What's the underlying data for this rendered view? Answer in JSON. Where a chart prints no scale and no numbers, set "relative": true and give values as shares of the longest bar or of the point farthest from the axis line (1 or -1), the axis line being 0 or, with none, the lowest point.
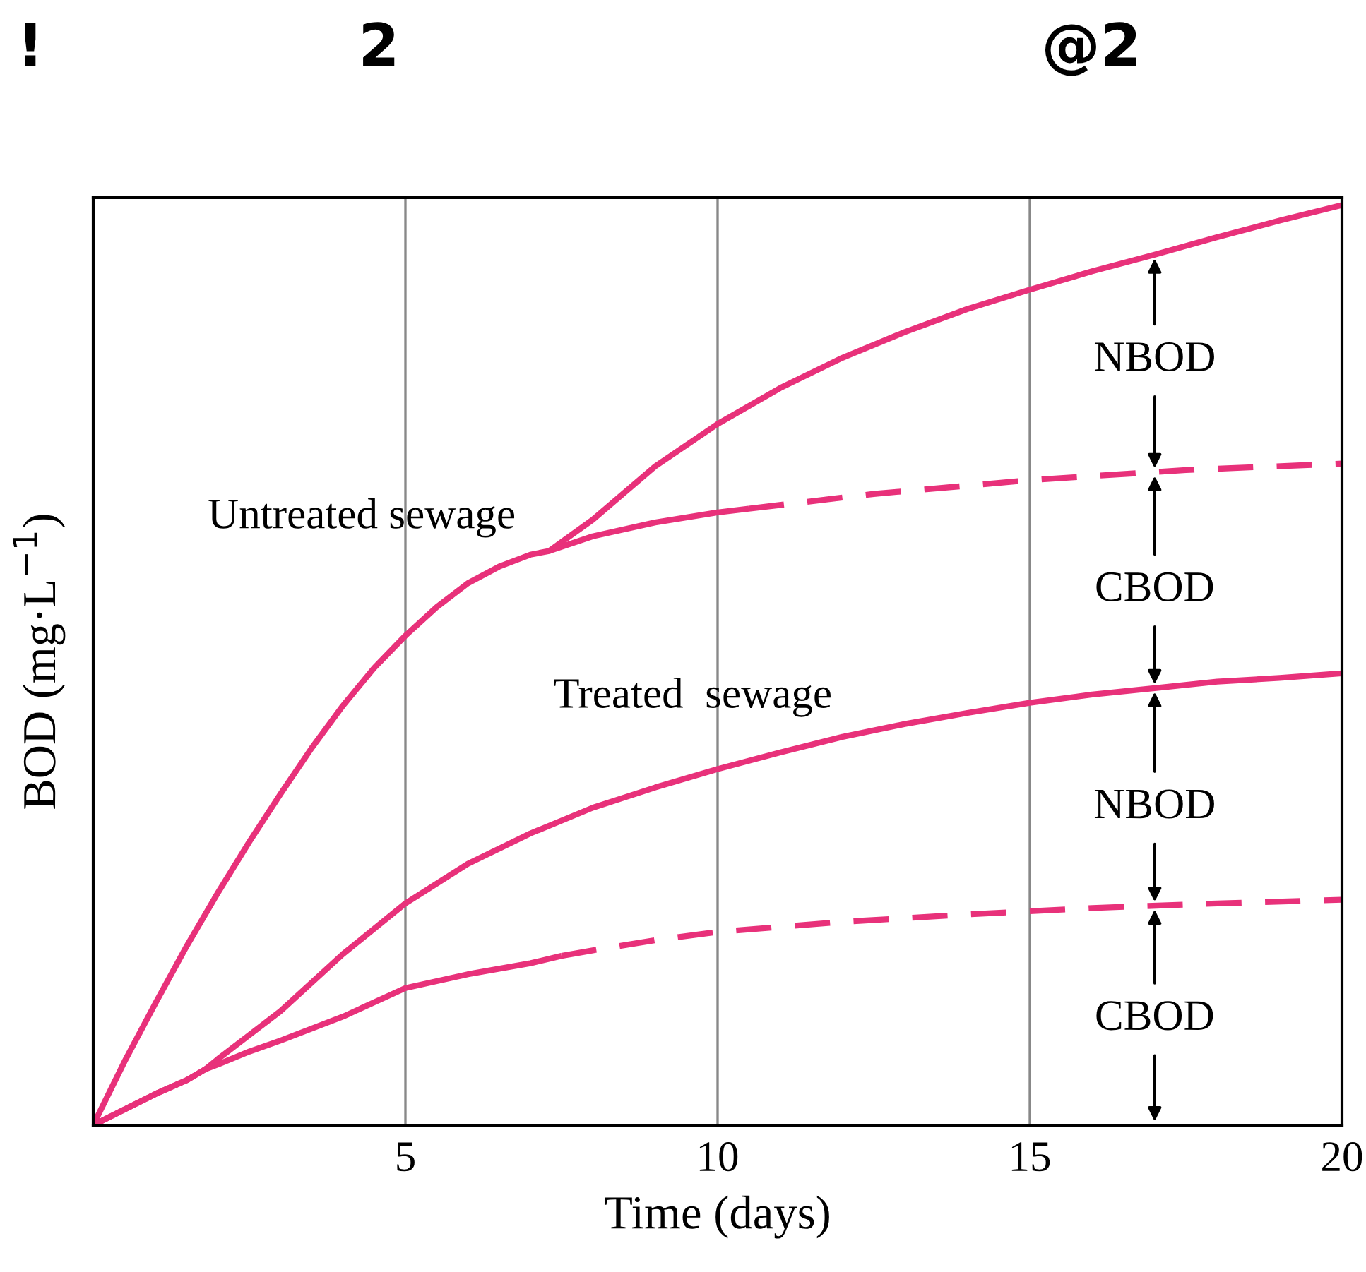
{
  "chart_data": {
    "type": "line",
    "relative": true,
    "xlabel": "Time (days)",
    "ylabel": "BOD (mg·L$^{−1}$)",
    "xlim": [
      0,
      20
    ],
    "xticks": [
      5,
      10,
      15,
      20
    ],
    "grid": "x",
    "legend": false,
    "series": [
      {
        "color": "#e8317a",
        "line_style": "solid",
        "x": [
          0,
          0.5,
          1,
          1.5,
          2,
          2.5,
          3,
          3.5,
          4,
          4.5,
          5,
          5.5,
          6,
          6.5,
          7,
          7.3,
          8,
          9,
          10,
          11,
          12,
          13,
          14,
          15,
          16,
          17,
          18,
          19,
          20
        ],
        "values": [
          0,
          0.069,
          0.133,
          0.195,
          0.253,
          0.308,
          0.36,
          0.41,
          0.456,
          0.497,
          0.532,
          0.563,
          0.589,
          0.607,
          0.62,
          0.624,
          0.658,
          0.716,
          0.762,
          0.801,
          0.834,
          0.862,
          0.887,
          0.908,
          0.928,
          0.946,
          0.965,
          0.983,
          1.0
        ]
      },
      {
        "color": "#e8317a",
        "line_style": "solid",
        "x": [
          7.3,
          8,
          9,
          10,
          10.5
        ],
        "values": [
          0.624,
          0.64,
          0.655,
          0.666,
          0.67
        ]
      },
      {
        "color": "#e8317a",
        "line_style": "dashed",
        "x": [
          10.5,
          12.5,
          15,
          17.5,
          20
        ],
        "values": [
          0.67,
          0.686,
          0.701,
          0.712,
          0.719
        ]
      },
      {
        "color": "#e8317a",
        "line_style": "solid",
        "x": [
          0,
          0.5,
          1,
          1.5,
          1.8,
          2,
          2.5,
          3,
          4,
          5,
          6,
          7,
          8,
          9,
          10,
          11,
          12,
          13,
          14,
          15,
          16,
          17,
          18,
          19,
          20
        ],
        "values": [
          0,
          0.017,
          0.034,
          0.049,
          0.061,
          0.072,
          0.098,
          0.124,
          0.186,
          0.241,
          0.284,
          0.317,
          0.345,
          0.367,
          0.387,
          0.405,
          0.422,
          0.436,
          0.448,
          0.459,
          0.468,
          0.475,
          0.482,
          0.486,
          0.491
        ]
      },
      {
        "color": "#e8317a",
        "line_style": "solid",
        "x": [
          0,
          0.5,
          1,
          1.5,
          1.8,
          2,
          2.5,
          3,
          4,
          5,
          6,
          7,
          7.5
        ],
        "values": [
          0,
          0.017,
          0.034,
          0.049,
          0.061,
          0.066,
          0.08,
          0.092,
          0.118,
          0.149,
          0.164,
          0.176,
          0.184
        ]
      },
      {
        "color": "#e8317a",
        "line_style": "dashed",
        "x": [
          7.5,
          8,
          9,
          10,
          12,
          14,
          16,
          18,
          20
        ],
        "values": [
          0.184,
          0.19,
          0.201,
          0.21,
          0.221,
          0.229,
          0.236,
          0.241,
          0.245
        ]
      }
    ],
    "annotations": [
      "!",
      "2",
      "@2",
      "Untreated sewage",
      "Treated  sewage",
      "NBOD",
      "CBOD",
      "NBOD",
      "CBOD"
    ]
  }
}
